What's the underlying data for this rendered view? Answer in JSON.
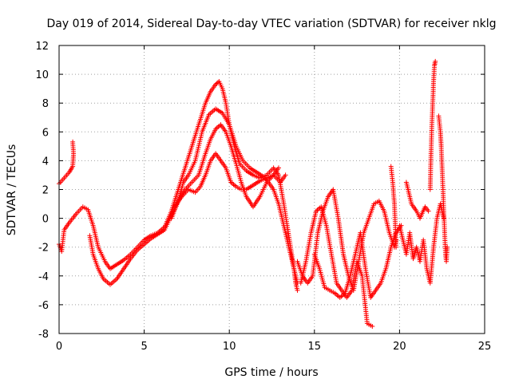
{
  "chart_data": {
    "type": "scatter",
    "title": "Day 019 of 2014, Sidereal Day-to-day VTEC variation (SDTVAR) for receiver nklg",
    "xlabel": "GPS time / hours",
    "ylabel": "SDTVAR / TECUs",
    "xlim": [
      0,
      25
    ],
    "ylim": [
      -8,
      12
    ],
    "xticks": [
      0,
      5,
      10,
      15,
      20,
      25
    ],
    "yticks": [
      -8,
      -6,
      -4,
      -2,
      0,
      2,
      4,
      6,
      8,
      10,
      12
    ],
    "grid": true,
    "marker": "+",
    "color": "#ff0000",
    "series": [
      {
        "name": "trace-1",
        "x": [
          0.0,
          0.3,
          0.6,
          0.8,
          0.85,
          0.8
        ],
        "y": [
          2.4,
          2.8,
          3.2,
          3.6,
          4.5,
          5.3
        ]
      },
      {
        "name": "trace-2",
        "x": [
          0.0,
          0.15,
          0.3,
          0.6,
          1.0,
          1.4,
          1.7,
          2.0,
          2.3,
          2.7,
          3.0,
          3.4,
          3.8,
          4.2,
          4.6,
          5.0,
          5.4,
          5.8,
          6.2,
          6.6,
          7.0,
          7.4,
          7.8,
          8.2,
          8.6,
          8.9,
          9.2,
          9.4,
          9.6,
          9.8,
          10.0,
          10.3,
          10.6,
          11.0,
          11.4,
          11.8,
          12.2,
          12.6,
          12.9,
          13.2,
          13.4,
          13.6,
          13.8,
          13.9,
          14.0
        ],
        "y": [
          -1.8,
          -2.3,
          -0.8,
          -0.3,
          0.3,
          0.8,
          0.6,
          -0.5,
          -2.0,
          -3.0,
          -3.5,
          -3.2,
          -2.9,
          -2.5,
          -2.0,
          -1.5,
          -1.2,
          -1.0,
          -0.6,
          0.5,
          2.0,
          3.5,
          5.0,
          6.5,
          8.0,
          8.8,
          9.3,
          9.5,
          9.0,
          8.0,
          6.5,
          5.0,
          3.8,
          3.3,
          3.0,
          2.8,
          3.0,
          3.5,
          3.0,
          1.0,
          -0.5,
          -2.0,
          -3.5,
          -4.5,
          -5.0
        ]
      },
      {
        "name": "trace-3",
        "x": [
          1.8,
          2.0,
          2.3,
          2.6,
          3.0,
          3.4,
          3.8,
          4.2,
          4.6,
          5.0,
          5.4,
          5.8,
          6.2,
          6.6,
          7.0,
          7.3,
          7.6,
          8.0,
          8.4,
          8.8,
          9.2,
          9.6,
          10.0,
          10.4,
          10.8,
          11.2,
          11.6,
          12.0,
          12.3,
          12.6,
          12.9,
          13.2,
          13.5,
          13.8,
          14.0
        ],
        "y": [
          -1.2,
          -2.5,
          -3.5,
          -4.2,
          -4.6,
          -4.2,
          -3.5,
          -2.8,
          -2.2,
          -1.8,
          -1.4,
          -1.1,
          -0.8,
          0.2,
          1.2,
          2.5,
          3.0,
          4.0,
          6.0,
          7.2,
          7.6,
          7.3,
          6.5,
          5.0,
          4.0,
          3.5,
          3.2,
          2.9,
          2.5,
          2.0,
          1.0,
          -0.5,
          -2.0,
          -3.5,
          -4.5
        ]
      },
      {
        "name": "trace-4",
        "x": [
          6.6,
          7.0,
          7.4,
          7.8,
          8.2,
          8.6,
          8.9,
          9.2,
          9.5,
          9.8,
          10.1,
          10.4,
          10.7,
          11.0,
          11.4,
          11.8,
          12.2,
          12.6,
          12.9
        ],
        "y": [
          0.0,
          1.2,
          2.0,
          2.5,
          3.0,
          4.5,
          5.5,
          6.2,
          6.5,
          6.0,
          5.0,
          3.8,
          2.5,
          1.5,
          0.8,
          1.5,
          2.5,
          3.0,
          3.5
        ]
      },
      {
        "name": "trace-5",
        "x": [
          6.8,
          7.2,
          7.6,
          8.0,
          8.3,
          8.6,
          8.9,
          9.2,
          9.5,
          9.8,
          10.1,
          10.4,
          10.7,
          11.0,
          11.4,
          11.8,
          12.2,
          12.6,
          13.0,
          13.3
        ],
        "y": [
          0.8,
          1.5,
          2.0,
          1.8,
          2.2,
          3.0,
          4.0,
          4.5,
          4.0,
          3.5,
          2.5,
          2.2,
          2.0,
          2.0,
          2.3,
          2.6,
          2.8,
          3.0,
          2.5,
          3.0
        ]
      },
      {
        "name": "trace-6",
        "x": [
          14.0,
          14.3,
          14.6,
          14.9,
          15.2,
          15.5,
          15.8,
          16.1,
          16.4,
          16.7,
          17.0,
          17.3,
          17.6,
          17.9,
          18.2,
          18.5,
          18.8,
          19.1,
          19.4,
          19.7,
          19.8
        ],
        "y": [
          -3.0,
          -4.0,
          -4.5,
          -4.0,
          -1.0,
          0.5,
          1.5,
          2.0,
          0.0,
          -2.5,
          -4.0,
          -5.0,
          -3.0,
          -1.0,
          0.0,
          1.0,
          1.2,
          0.5,
          -1.0,
          -2.0,
          -1.5
        ]
      },
      {
        "name": "trace-7",
        "x": [
          14.2,
          14.5,
          14.8,
          15.1,
          15.4,
          15.7,
          16.0,
          16.3,
          16.6,
          16.9,
          17.2,
          17.5,
          17.8,
          18.1,
          18.4
        ],
        "y": [
          -4.5,
          -3.0,
          -1.0,
          0.5,
          0.8,
          -0.5,
          -2.5,
          -4.5,
          -5.0,
          -5.5,
          -5.0,
          -3.0,
          -4.0,
          -7.3,
          -7.5
        ]
      },
      {
        "name": "trace-8",
        "x": [
          15.0,
          15.3,
          15.6,
          15.9,
          16.2,
          16.5,
          16.8,
          17.1,
          17.4,
          17.7,
          18.0,
          18.3,
          18.6,
          18.9,
          19.2,
          19.5,
          19.8,
          20.1
        ],
        "y": [
          -2.5,
          -3.5,
          -4.8,
          -5.0,
          -5.2,
          -5.5,
          -5.2,
          -4.0,
          -2.5,
          -1.0,
          -3.5,
          -5.5,
          -5.0,
          -4.5,
          -3.5,
          -2.0,
          -1.0,
          -0.5
        ]
      },
      {
        "name": "trace-9",
        "x": [
          19.5,
          19.6,
          19.7,
          19.75,
          19.8
        ],
        "y": [
          3.6,
          2.5,
          1.0,
          -0.5,
          -2.0
        ]
      },
      {
        "name": "trace-10",
        "x": [
          20.0,
          20.2,
          20.4,
          20.6,
          20.8,
          21.0,
          21.2,
          21.4,
          21.6,
          21.8,
          22.0,
          22.2,
          22.4,
          22.6
        ],
        "y": [
          -0.5,
          -1.5,
          -2.5,
          -1.0,
          -2.8,
          -2.0,
          -3.0,
          -1.5,
          -3.5,
          -4.5,
          -2.0,
          0.0,
          1.0,
          0.0
        ]
      },
      {
        "name": "trace-11",
        "x": [
          21.8,
          21.85,
          21.9,
          21.95,
          22.0,
          22.05,
          22.1
        ],
        "y": [
          2.0,
          4.5,
          6.5,
          8.0,
          9.5,
          10.6,
          10.9
        ]
      },
      {
        "name": "trace-12",
        "x": [
          22.3,
          22.4,
          22.45,
          22.5,
          22.55,
          22.6,
          22.65,
          22.7,
          22.75,
          22.8
        ],
        "y": [
          7.1,
          6.0,
          5.0,
          3.5,
          2.0,
          0.5,
          -1.0,
          -2.5,
          -3.0,
          -2.0
        ]
      },
      {
        "name": "trace-13",
        "x": [
          20.4,
          20.7,
          21.0,
          21.2,
          21.5,
          21.7
        ],
        "y": [
          2.5,
          1.0,
          0.5,
          0.0,
          0.8,
          0.5
        ]
      }
    ]
  }
}
